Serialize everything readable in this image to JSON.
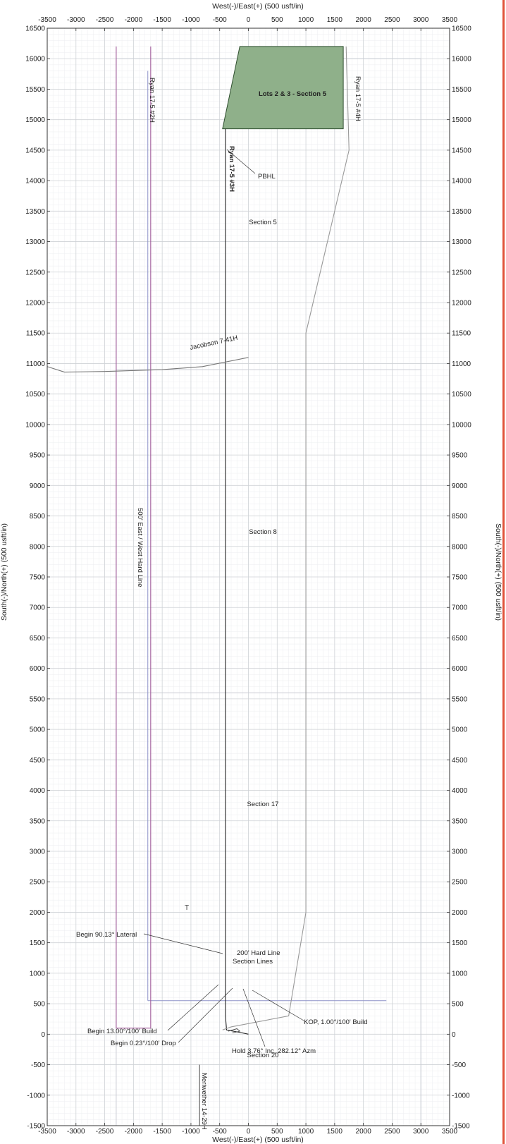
{
  "chart_data": {
    "type": "line",
    "title": "",
    "xlabel_top": "West(-)/East(+) (500 usft/in)",
    "xlabel_bottom": "West(-)/East(+) (500 usft/in)",
    "ylabel_left": "South(-)/North(+) (500 usft/in)",
    "ylabel_right": "South(-)/North(+) (500 usft/in)",
    "xlim": [
      -3500,
      3500
    ],
    "ylim": [
      -1500,
      16500
    ],
    "x_major_step": 500,
    "y_major_step": 500,
    "grid": true,
    "xticks": [
      "-3500",
      "-3000",
      "-2500",
      "-2000",
      "-1500",
      "-1000",
      "-500",
      "0",
      "500",
      "1000",
      "1500",
      "2000",
      "2500",
      "3000",
      "3500"
    ],
    "yticks": [
      "-1500",
      "-1000",
      "-500",
      "0",
      "500",
      "1000",
      "1500",
      "2000",
      "2500",
      "3000",
      "3500",
      "4000",
      "4500",
      "5000",
      "5500",
      "6000",
      "6500",
      "7000",
      "7500",
      "8000",
      "8500",
      "9000",
      "9500",
      "10000",
      "10500",
      "11000",
      "11500",
      "12000",
      "12500",
      "13000",
      "13500",
      "14000",
      "14500",
      "15000",
      "15500",
      "16000",
      "16500"
    ],
    "regions": [
      {
        "name": "Lots 2 & 3 - Section 5",
        "fill": "#8fb08a",
        "points": [
          [
            -450,
            14850
          ],
          [
            1650,
            14850
          ],
          [
            1650,
            16200
          ],
          [
            -150,
            16200
          ]
        ]
      }
    ],
    "series": [
      {
        "name": "Ryan 17-5 #3H",
        "color": "#222222",
        "points": [
          [
            0,
            0
          ],
          [
            -150,
            30
          ],
          [
            -380,
            70
          ],
          [
            -400,
            300
          ],
          [
            -400,
            1000
          ],
          [
            -400,
            5000
          ],
          [
            -400,
            10000
          ],
          [
            -400,
            14000
          ],
          [
            -400,
            14850
          ]
        ]
      },
      {
        "name": "Ryan 17-5 #2H",
        "color": "#a05a9a",
        "points": [
          [
            -2300,
            16200
          ],
          [
            -2300,
            100
          ],
          [
            -1700,
            100
          ],
          [
            -1700,
            16200
          ]
        ]
      },
      {
        "name": "Ryan 17-5 #4H",
        "color": "#999999",
        "points": [
          [
            -450,
            70
          ],
          [
            -300,
            120
          ],
          [
            700,
            300
          ],
          [
            1000,
            2000
          ],
          [
            1000,
            11500
          ],
          [
            1750,
            14500
          ],
          [
            1700,
            16200
          ]
        ]
      },
      {
        "name": "Jacobson 7-41H",
        "color": "#777777",
        "points": [
          [
            -3500,
            10950
          ],
          [
            -3200,
            10860
          ],
          [
            -2500,
            10870
          ],
          [
            -1500,
            10900
          ],
          [
            -800,
            10950
          ],
          [
            0,
            11100
          ]
        ]
      },
      {
        "name": "Meriwether 14-29H",
        "color": "#555555",
        "points": [
          [
            -850,
            -500
          ],
          [
            -850,
            -1500
          ]
        ]
      }
    ],
    "wellbore_detail": [
      [
        -350,
        50
      ],
      [
        -200,
        90
      ],
      [
        -150,
        50
      ],
      [
        -280,
        20
      ]
    ],
    "section_boundaries": {
      "color": "#c9ccd4",
      "vertical_x": [
        -2300,
        3000
      ],
      "horizontal_y": [
        5600,
        10900,
        16000
      ]
    },
    "hard_line": {
      "color": "#8e92c8",
      "x": -1750,
      "y_range": [
        550,
        15800
      ],
      "label": "500' East / West Hard Line"
    },
    "hard_line_200": {
      "color": "#8e92c8",
      "y": 550,
      "x_range": [
        -1750,
        2400
      ],
      "label": "200' Hard Line"
    },
    "pbhl": {
      "label": "PBHL",
      "x": -400,
      "y": 14850
    },
    "north_arrow": "T",
    "well_labels": [
      "Ryan 17-5 #2H",
      "Ryan 17-5 #3H",
      "Ryan 17-5 #4H",
      "Jacobson 7-41H",
      "Meriwether 14-29H"
    ],
    "section_labels": [
      "Section 5",
      "Section 8",
      "Section 17",
      "Section 20"
    ],
    "section_lines_label": "Section Lines",
    "annotations": [
      {
        "text": "Begin 90.13° Lateral",
        "x": -440,
        "y": 480
      },
      {
        "text": "Begin 13.00°/100' Build",
        "x": -460,
        "y": 60
      },
      {
        "text": "Begin 0.23°/100' Drop",
        "x": -300,
        "y": 20
      },
      {
        "text": "KOP, 1.00°/100' Build",
        "x": 0,
        "y": 0
      },
      {
        "text": "Hold 3.76° Inc, 282.12° Azm",
        "x": -80,
        "y": 30
      }
    ]
  }
}
